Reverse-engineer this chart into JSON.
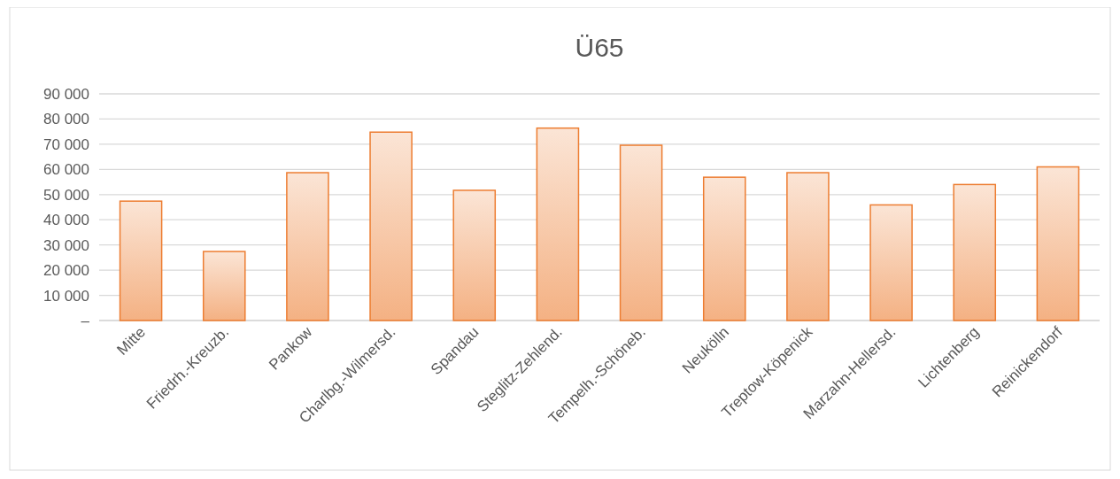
{
  "chart_data": {
    "type": "bar",
    "title": "Ü65",
    "categories": [
      "Mitte",
      "Friedrh.-Kreuzb.",
      "Pankow",
      "Charlbg.-Wilmersd.",
      "Spandau",
      "Steglitz-Zehlend.",
      "Tempelh.-Schöneb.",
      "Neukölln",
      "Treptow-Köpenick",
      "Marzahn-Hellersd.",
      "Lichtenberg",
      "Reinickendorf"
    ],
    "values": [
      47400,
      27400,
      58700,
      74800,
      51700,
      76400,
      69600,
      56900,
      58700,
      45900,
      54000,
      61000
    ],
    "color": "#ed7d31",
    "ylim": [
      0,
      90000
    ],
    "yticks": [
      {
        "value": 0,
        "label": "–"
      },
      {
        "value": 10000,
        "label": "10 000"
      },
      {
        "value": 20000,
        "label": "20 000"
      },
      {
        "value": 30000,
        "label": "30 000"
      },
      {
        "value": 40000,
        "label": "40 000"
      },
      {
        "value": 50000,
        "label": "50 000"
      },
      {
        "value": 60000,
        "label": "60 000"
      },
      {
        "value": 70000,
        "label": "70 000"
      },
      {
        "value": 80000,
        "label": "80 000"
      },
      {
        "value": 90000,
        "label": "90 000"
      }
    ],
    "grid": "y"
  }
}
